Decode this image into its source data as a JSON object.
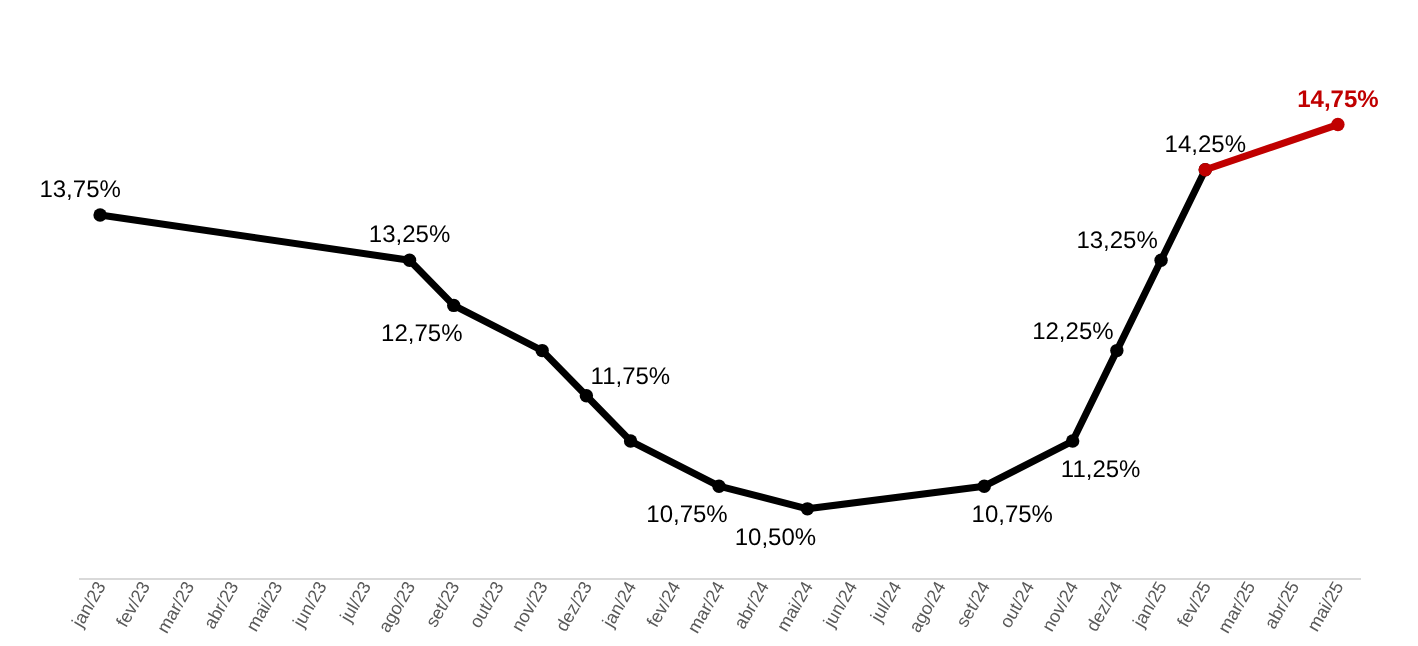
{
  "chart_data": {
    "type": "line",
    "categories": [
      "jan/23",
      "fev/23",
      "mar/23",
      "abr/23",
      "mai/23",
      "jun/23",
      "jul/23",
      "ago/23",
      "set/23",
      "out/23",
      "nov/23",
      "dez/23",
      "jan/24",
      "fev/24",
      "mar/24",
      "abr/24",
      "mai/24",
      "jun/24",
      "jul/24",
      "ago/24",
      "set/24",
      "out/24",
      "nov/24",
      "dez/24",
      "jan/25",
      "fev/25",
      "mar/25",
      "abr/25",
      "mai/25"
    ],
    "series": [
      {
        "color": "#000000",
        "values": [
          13.75,
          null,
          null,
          null,
          null,
          null,
          null,
          13.25,
          12.75,
          null,
          12.25,
          11.75,
          11.25,
          null,
          10.75,
          null,
          10.5,
          null,
          null,
          null,
          10.75,
          null,
          11.25,
          12.25,
          13.25,
          14.25,
          null,
          null,
          null
        ],
        "value_labels": [
          "13,75%",
          null,
          null,
          null,
          null,
          null,
          null,
          "13,25%",
          "12,75%",
          null,
          null,
          "11,75%",
          null,
          null,
          "10,75%",
          null,
          "10,50%",
          null,
          null,
          null,
          "10,75%",
          null,
          "11,25%",
          "12,25%",
          "13,25%",
          "14,25%",
          null,
          null,
          null
        ]
      },
      {
        "color": "#c00000",
        "values": [
          null,
          null,
          null,
          null,
          null,
          null,
          null,
          null,
          null,
          null,
          null,
          null,
          null,
          null,
          null,
          null,
          null,
          null,
          null,
          null,
          null,
          null,
          null,
          null,
          null,
          14.25,
          null,
          null,
          14.75
        ],
        "value_labels": [
          null,
          null,
          null,
          null,
          null,
          null,
          null,
          null,
          null,
          null,
          null,
          null,
          null,
          null,
          null,
          null,
          null,
          null,
          null,
          null,
          null,
          null,
          null,
          null,
          null,
          null,
          null,
          null,
          "14,75%"
        ]
      }
    ],
    "marker": "circle",
    "line_style": "solid",
    "grid": false,
    "legend": false
  }
}
